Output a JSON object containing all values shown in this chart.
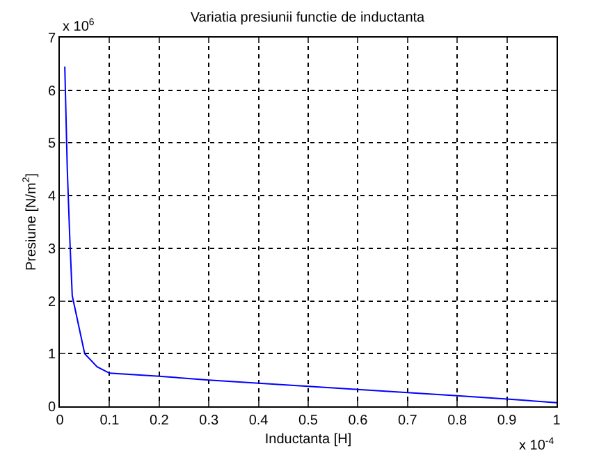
{
  "chart_data": {
    "type": "line",
    "title": "Variatia presiunii functie de inductanta",
    "xlabel": "Inductanta [H]",
    "ylabel": "Presiune [N/m$^{2}$]",
    "annotations": [
      "x 10$^{6}$",
      "x 10$^{-4}$"
    ],
    "x": [
      0.01,
      0.015,
      0.02,
      0.025,
      0.05,
      0.075,
      0.1,
      0.2,
      0.3,
      0.4,
      0.5,
      0.6,
      0.7,
      0.8,
      0.9,
      1.0
    ],
    "series": [
      {
        "color": "#0000ff",
        "values": [
          6.45,
          4.5,
          3.2,
          2.1,
          1.0,
          0.75,
          0.63,
          0.57,
          0.5,
          0.44,
          0.38,
          0.32,
          0.26,
          0.2,
          0.14,
          0.07
        ]
      }
    ],
    "xlim": [
      0,
      1
    ],
    "xticks": [
      0,
      0.1,
      0.2,
      0.3,
      0.4,
      0.5,
      0.6,
      0.7,
      0.8,
      0.9,
      1
    ],
    "ylim": [
      0,
      7
    ],
    "yticks": [
      0,
      1,
      2,
      3,
      4,
      5,
      6,
      7
    ],
    "grid": true,
    "line_style": "solid",
    "marker": "none"
  }
}
